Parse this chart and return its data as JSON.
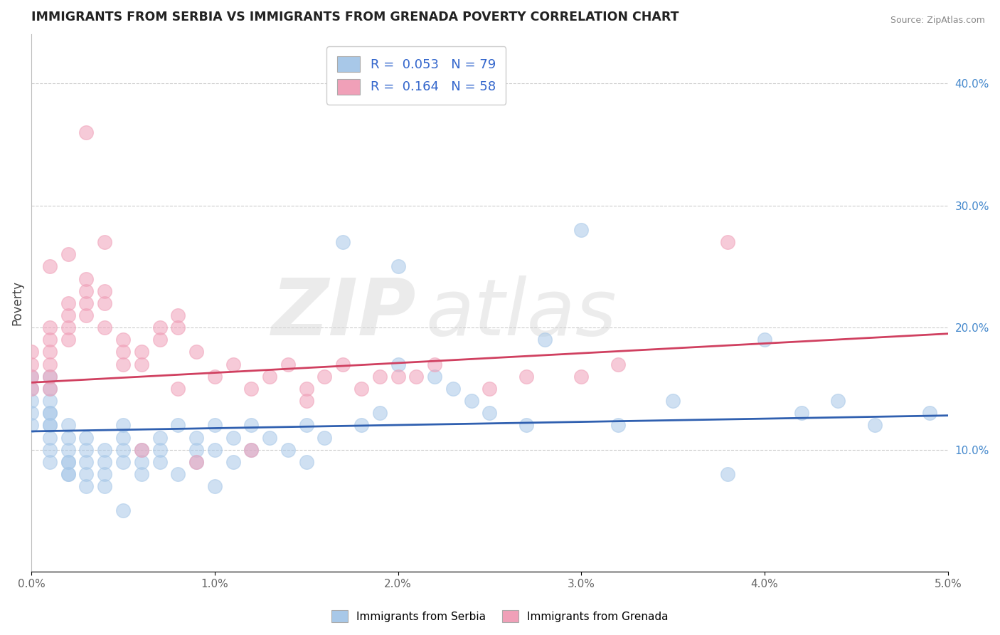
{
  "title": "IMMIGRANTS FROM SERBIA VS IMMIGRANTS FROM GRENADA POVERTY CORRELATION CHART",
  "source": "Source: ZipAtlas.com",
  "ylabel": "Poverty",
  "ylabel_right_ticks": [
    "10.0%",
    "20.0%",
    "30.0%",
    "40.0%"
  ],
  "ylabel_right_vals": [
    0.1,
    0.2,
    0.3,
    0.4
  ],
  "serbia_R": 0.053,
  "serbia_N": 79,
  "grenada_R": 0.164,
  "grenada_N": 58,
  "serbia_color": "#a8c8e8",
  "grenada_color": "#f0a0b8",
  "serbia_line_color": "#3060b0",
  "grenada_line_color": "#d04060",
  "background_color": "#ffffff",
  "watermark": "ZIPatlas",
  "xlim": [
    0.0,
    0.05
  ],
  "ylim": [
    0.0,
    0.44
  ],
  "serbia_scatter_x": [
    0.0,
    0.0,
    0.0,
    0.0,
    0.0,
    0.001,
    0.001,
    0.001,
    0.001,
    0.001,
    0.001,
    0.001,
    0.001,
    0.001,
    0.001,
    0.002,
    0.002,
    0.002,
    0.002,
    0.002,
    0.002,
    0.002,
    0.003,
    0.003,
    0.003,
    0.003,
    0.003,
    0.004,
    0.004,
    0.004,
    0.004,
    0.005,
    0.005,
    0.005,
    0.005,
    0.006,
    0.006,
    0.006,
    0.007,
    0.007,
    0.007,
    0.008,
    0.008,
    0.009,
    0.009,
    0.009,
    0.01,
    0.01,
    0.011,
    0.011,
    0.012,
    0.012,
    0.013,
    0.014,
    0.015,
    0.016,
    0.017,
    0.018,
    0.019,
    0.02,
    0.022,
    0.023,
    0.024,
    0.025,
    0.027,
    0.028,
    0.03,
    0.032,
    0.035,
    0.038,
    0.04,
    0.042,
    0.044,
    0.046,
    0.049,
    0.02,
    0.015,
    0.01,
    0.005
  ],
  "serbia_scatter_y": [
    0.13,
    0.14,
    0.12,
    0.16,
    0.15,
    0.12,
    0.11,
    0.13,
    0.14,
    0.1,
    0.15,
    0.09,
    0.13,
    0.12,
    0.16,
    0.08,
    0.09,
    0.1,
    0.11,
    0.12,
    0.08,
    0.09,
    0.07,
    0.08,
    0.09,
    0.1,
    0.11,
    0.09,
    0.1,
    0.08,
    0.07,
    0.09,
    0.1,
    0.11,
    0.12,
    0.08,
    0.09,
    0.1,
    0.09,
    0.1,
    0.11,
    0.12,
    0.08,
    0.1,
    0.11,
    0.09,
    0.12,
    0.1,
    0.09,
    0.11,
    0.1,
    0.12,
    0.11,
    0.1,
    0.12,
    0.11,
    0.27,
    0.12,
    0.13,
    0.25,
    0.16,
    0.15,
    0.14,
    0.13,
    0.12,
    0.19,
    0.28,
    0.12,
    0.14,
    0.08,
    0.19,
    0.13,
    0.14,
    0.12,
    0.13,
    0.17,
    0.09,
    0.07,
    0.05
  ],
  "grenada_scatter_x": [
    0.0,
    0.0,
    0.0,
    0.0,
    0.001,
    0.001,
    0.001,
    0.001,
    0.001,
    0.001,
    0.002,
    0.002,
    0.002,
    0.002,
    0.003,
    0.003,
    0.003,
    0.003,
    0.004,
    0.004,
    0.004,
    0.005,
    0.005,
    0.005,
    0.006,
    0.006,
    0.007,
    0.007,
    0.008,
    0.008,
    0.009,
    0.01,
    0.011,
    0.012,
    0.013,
    0.014,
    0.015,
    0.016,
    0.017,
    0.018,
    0.019,
    0.02,
    0.021,
    0.022,
    0.025,
    0.027,
    0.03,
    0.032,
    0.038,
    0.015,
    0.012,
    0.009,
    0.006,
    0.003,
    0.001,
    0.002,
    0.004,
    0.008
  ],
  "grenada_scatter_y": [
    0.17,
    0.16,
    0.18,
    0.15,
    0.18,
    0.17,
    0.16,
    0.19,
    0.15,
    0.2,
    0.22,
    0.21,
    0.2,
    0.19,
    0.24,
    0.23,
    0.22,
    0.21,
    0.23,
    0.22,
    0.2,
    0.19,
    0.18,
    0.17,
    0.18,
    0.17,
    0.2,
    0.19,
    0.21,
    0.2,
    0.18,
    0.16,
    0.17,
    0.15,
    0.16,
    0.17,
    0.15,
    0.16,
    0.17,
    0.15,
    0.16,
    0.16,
    0.16,
    0.17,
    0.15,
    0.16,
    0.16,
    0.17,
    0.27,
    0.14,
    0.1,
    0.09,
    0.1,
    0.36,
    0.25,
    0.26,
    0.27,
    0.15
  ]
}
